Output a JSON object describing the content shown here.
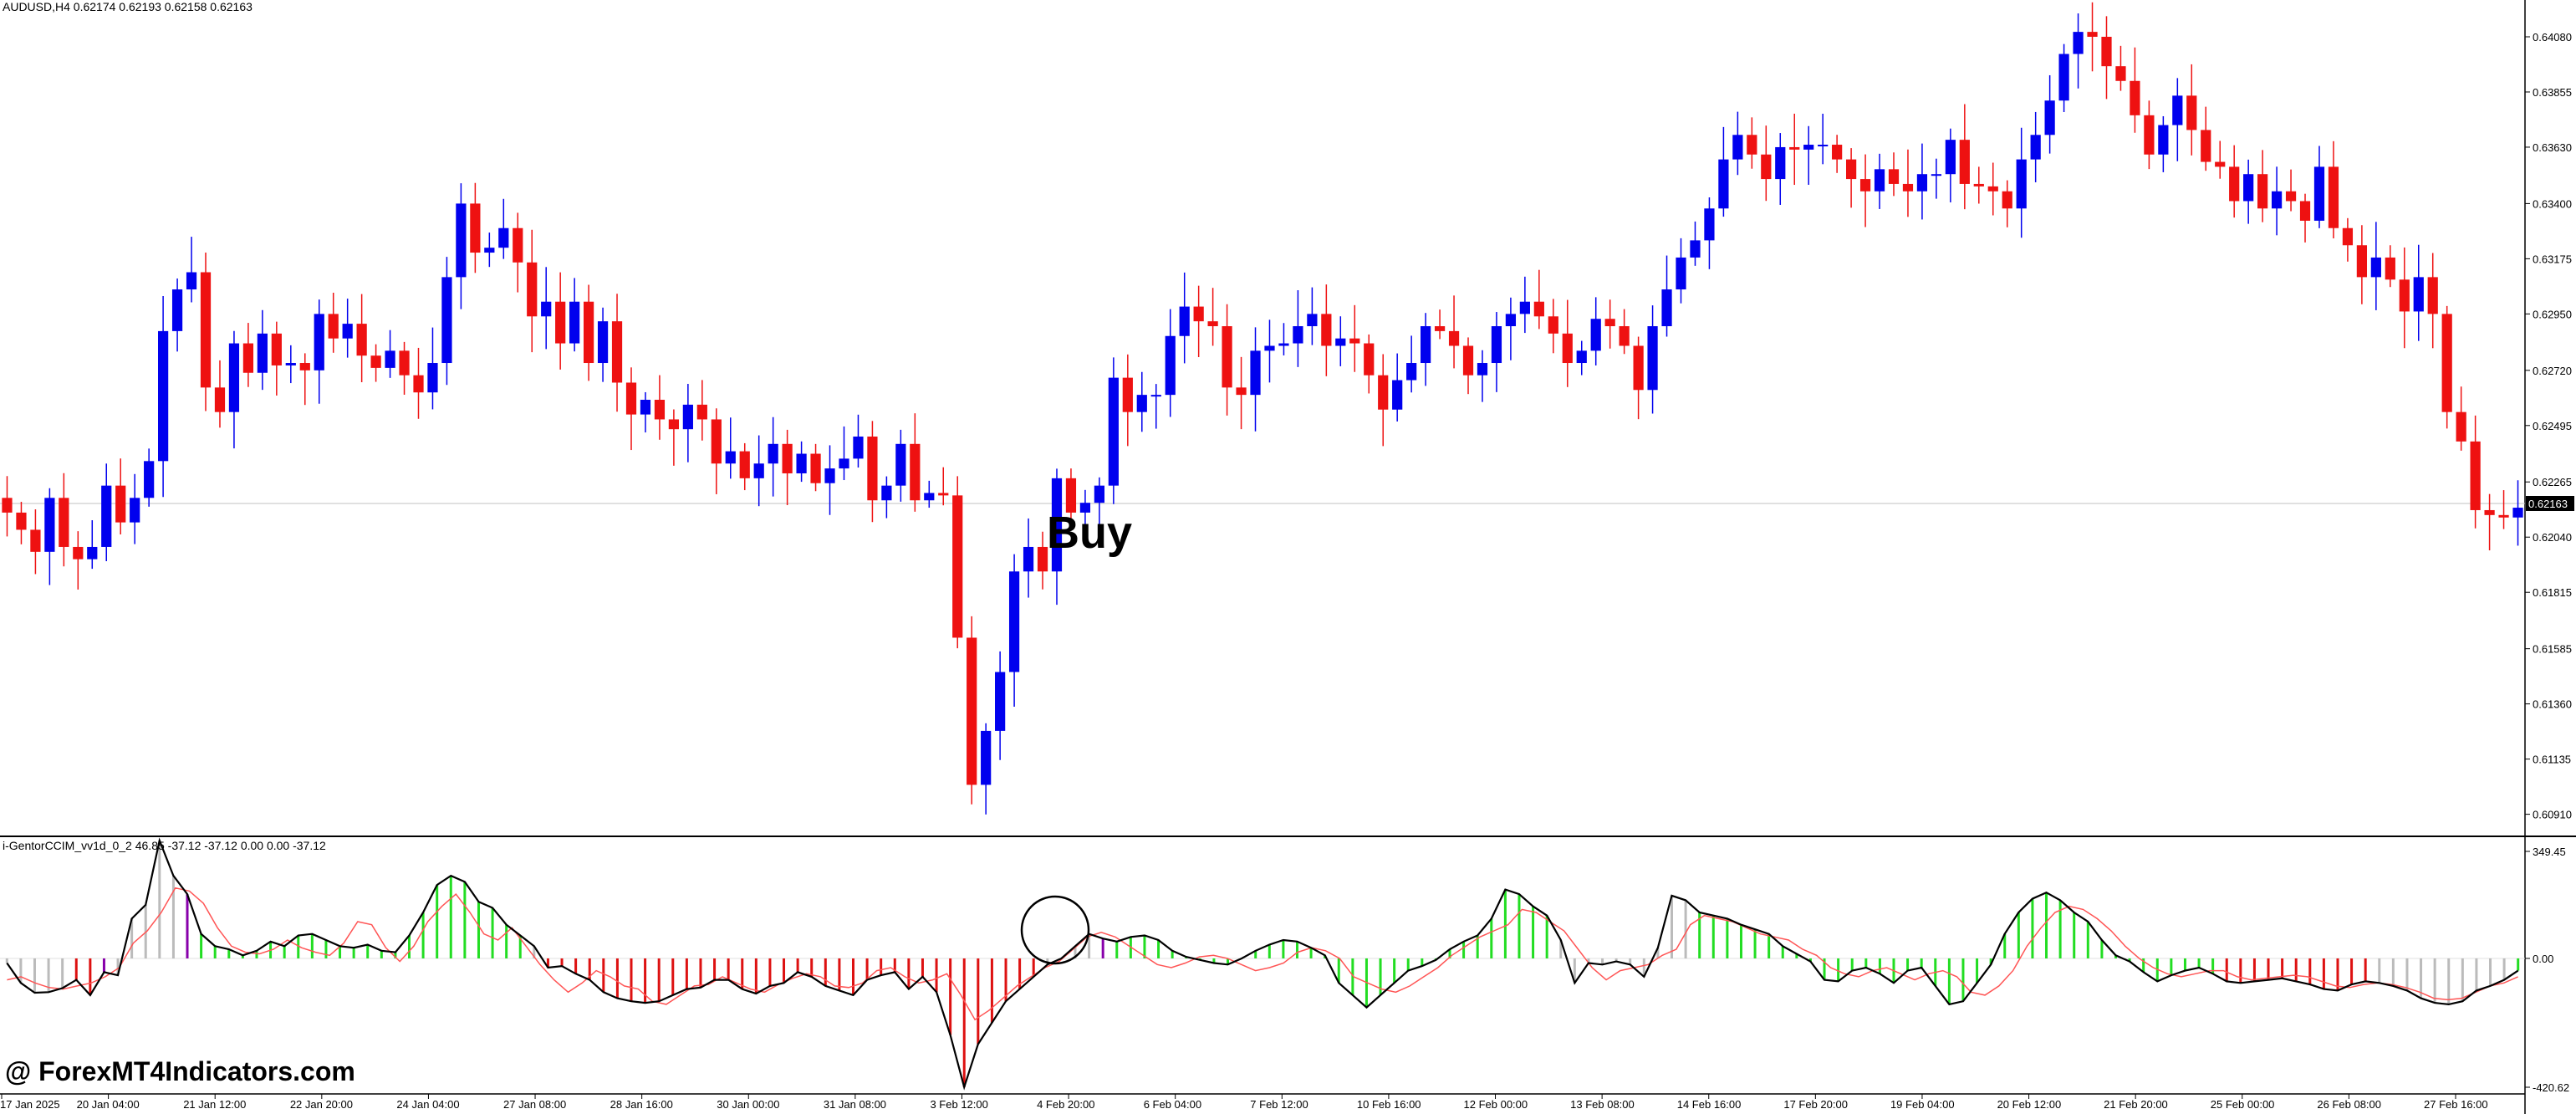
{
  "header": {
    "symbol_info": "AUDUSD,H4  0.62174 0.62193 0.62158 0.62163"
  },
  "indicator": {
    "info": "i-GentorCCIM_vv1d_0_2 46.85 -37.12 -37.12 0.00 0.00 -37.12"
  },
  "watermark": "@ ForexMT4Indicators.com",
  "annotation": "Buy",
  "colors": {
    "bull": "#0000ee",
    "bear": "#ee1111",
    "hist_up": "#22dd22",
    "hist_down": "#dd1111",
    "hist_neutral": "#bbbbbb",
    "signal": "#ff5555",
    "main_line": "#000000",
    "marker": "#8800aa"
  },
  "chart_data": [
    {
      "type": "candlestick",
      "symbol": "AUDUSD",
      "timeframe": "H4",
      "ylim": [
        0.6082,
        0.6423
      ],
      "current_price": "0.62163",
      "y_ticks": [
        "0.64080",
        "0.63855",
        "0.63630",
        "0.63400",
        "0.63175",
        "0.62950",
        "0.62720",
        "0.62495",
        "0.62265",
        "0.62040",
        "0.61815",
        "0.61585",
        "0.61360",
        "0.61135",
        "0.60910"
      ],
      "x_ticks": [
        "17 Jan 2025",
        "20 Jan 04:00",
        "21 Jan 12:00",
        "22 Jan 20:00",
        "24 Jan 04:00",
        "27 Jan 08:00",
        "28 Jan 16:00",
        "30 Jan 00:00",
        "31 Jan 08:00",
        "3 Feb 12:00",
        "4 Feb 20:00",
        "6 Feb 04:00",
        "7 Feb 12:00",
        "10 Feb 16:00",
        "12 Feb 00:00",
        "13 Feb 08:00",
        "14 Feb 16:00",
        "17 Feb 20:00",
        "19 Feb 04:00",
        "20 Feb 12:00",
        "21 Feb 20:00",
        "25 Feb 00:00",
        "26 Feb 08:00",
        "27 Feb 16:00"
      ],
      "closes": [
        0.6214,
        0.6207,
        0.6198,
        0.622,
        0.62,
        0.6195,
        0.62,
        0.6225,
        0.621,
        0.622,
        0.6235,
        0.6288,
        0.6305,
        0.6312,
        0.6265,
        0.6255,
        0.6283,
        0.6271,
        0.6287,
        0.6274,
        0.6275,
        0.6272,
        0.6295,
        0.6285,
        0.6291,
        0.6278,
        0.6273,
        0.628,
        0.627,
        0.6263,
        0.6275,
        0.631,
        0.634,
        0.632,
        0.6322,
        0.633,
        0.6316,
        0.6294,
        0.63,
        0.6283,
        0.63,
        0.6275,
        0.6292,
        0.6267,
        0.6254,
        0.626,
        0.6252,
        0.6248,
        0.6258,
        0.6252,
        0.6234,
        0.6239,
        0.6228,
        0.6234,
        0.6242,
        0.623,
        0.6238,
        0.6226,
        0.6232,
        0.6236,
        0.6245,
        0.6219,
        0.6225,
        0.6242,
        0.6219,
        0.6222,
        0.6221,
        0.6163,
        0.6103,
        0.6125,
        0.6149,
        0.619,
        0.62,
        0.619,
        0.6228,
        0.6214,
        0.6218,
        0.6225,
        0.6269,
        0.6255,
        0.6262,
        0.6262,
        0.6286,
        0.6298,
        0.6292,
        0.629,
        0.6265,
        0.6262,
        0.628,
        0.6282,
        0.6283,
        0.629,
        0.6295,
        0.6282,
        0.6285,
        0.6283,
        0.627,
        0.6256,
        0.6268,
        0.6275,
        0.629,
        0.6288,
        0.6282,
        0.627,
        0.6275,
        0.629,
        0.6295,
        0.63,
        0.6294,
        0.6287,
        0.6275,
        0.628,
        0.6293,
        0.629,
        0.6282,
        0.6264,
        0.629,
        0.6305,
        0.6318,
        0.6325,
        0.6338,
        0.6358,
        0.6368,
        0.636,
        0.635,
        0.6363,
        0.6362,
        0.6364,
        0.6364,
        0.6358,
        0.635,
        0.6345,
        0.6354,
        0.6348,
        0.6345,
        0.6352,
        0.6352,
        0.6366,
        0.6348,
        0.6347,
        0.6345,
        0.6338,
        0.6358,
        0.6368,
        0.6382,
        0.6401,
        0.641,
        0.6408,
        0.6396,
        0.639,
        0.6376,
        0.636,
        0.6372,
        0.6384,
        0.637,
        0.6357,
        0.6355,
        0.6341,
        0.6352,
        0.6338,
        0.6345,
        0.6341,
        0.6333,
        0.6355,
        0.633,
        0.6323,
        0.631,
        0.6318,
        0.6309,
        0.6296,
        0.631,
        0.6295,
        0.6255,
        0.6243,
        0.6215,
        0.6213,
        0.6212,
        0.6216
      ],
      "buy_signal_label": "Buy"
    },
    {
      "type": "oscillator",
      "name": "i-GentorCCIM_vv1d_0_2",
      "values": [
        46.85,
        -37.12,
        -37.12,
        0.0,
        0.0,
        -37.12
      ],
      "ylim": [
        -420.62,
        349.45
      ],
      "y_ticks": [
        "349.45",
        "0.00",
        "-420.62"
      ],
      "series": [
        {
          "type": "histogram+line",
          "values": [
            -15,
            -80,
            -112,
            -110,
            -97,
            -70,
            -120,
            -45,
            -55,
            130,
            175,
            385,
            270,
            210,
            80,
            40,
            30,
            10,
            25,
            55,
            40,
            75,
            80,
            60,
            40,
            35,
            45,
            25,
            20,
            75,
            150,
            240,
            270,
            250,
            185,
            165,
            110,
            75,
            40,
            -30,
            -25,
            -50,
            -70,
            -110,
            -130,
            -140,
            -145,
            -140,
            -120,
            -100,
            -95,
            -70,
            -70,
            -100,
            -115,
            -90,
            -80,
            -45,
            -60,
            -90,
            -105,
            -120,
            -70,
            -55,
            -45,
            -100,
            -60,
            -110,
            -250,
            -420,
            -280,
            -210,
            -140,
            -100,
            -60,
            -20,
            0,
            40,
            80,
            65,
            55,
            70,
            75,
            60,
            25,
            5,
            -5,
            -15,
            -20,
            0,
            25,
            45,
            60,
            55,
            35,
            10,
            -80,
            -120,
            -160,
            -120,
            -80,
            -40,
            -25,
            -5,
            30,
            55,
            75,
            130,
            225,
            210,
            170,
            140,
            60,
            -80,
            -15,
            -20,
            -10,
            -20,
            -60,
            35,
            205,
            190,
            150,
            140,
            130,
            110,
            95,
            80,
            40,
            15,
            -10,
            -70,
            -75,
            -40,
            -30,
            -50,
            -80,
            -40,
            -30,
            -90,
            -150,
            -140,
            -80,
            -20,
            80,
            150,
            195,
            215,
            190,
            150,
            120,
            60,
            10,
            -10,
            -45,
            -75,
            -55,
            -40,
            -30,
            -50,
            -75,
            -80,
            -75,
            -70,
            -65,
            -75,
            -85,
            -100,
            -105,
            -85,
            -75,
            -80,
            -90,
            -105,
            -130,
            -145,
            -150,
            -140,
            -105,
            -90,
            -70,
            -40
          ],
          "histogram_colors": [
            "n",
            "n",
            "n",
            "n",
            "n",
            "d",
            "d",
            "m",
            "n",
            "n",
            "n",
            "n",
            "n",
            "m",
            "u",
            "u",
            "u",
            "u",
            "u",
            "u",
            "u",
            "u",
            "u",
            "u",
            "u",
            "u",
            "u",
            "u",
            "u",
            "u",
            "u",
            "u",
            "u",
            "u",
            "u",
            "u",
            "u",
            "u",
            "n",
            "d",
            "d",
            "d",
            "d",
            "d",
            "d",
            "d",
            "d",
            "d",
            "d",
            "d",
            "d",
            "d",
            "d",
            "d",
            "d",
            "d",
            "d",
            "d",
            "d",
            "d",
            "d",
            "d",
            "d",
            "d",
            "d",
            "d",
            "d",
            "d",
            "d",
            "d",
            "d",
            "d",
            "d",
            "d",
            "d",
            "n",
            "n",
            "n",
            "n",
            "m",
            "u",
            "u",
            "u",
            "u",
            "u",
            "u",
            "u",
            "u",
            "u",
            "u",
            "u",
            "u",
            "u",
            "u",
            "u",
            "u",
            "u",
            "u",
            "u",
            "u",
            "u",
            "u",
            "u",
            "u",
            "u",
            "u",
            "u",
            "u",
            "u",
            "u",
            "u",
            "u",
            "n",
            "n",
            "n",
            "n",
            "n",
            "n",
            "n",
            "n",
            "n",
            "n",
            "u",
            "u",
            "u",
            "u",
            "u",
            "u",
            "u",
            "u",
            "u",
            "u",
            "u",
            "u",
            "u",
            "u",
            "u",
            "u",
            "u",
            "u",
            "u",
            "u",
            "u",
            "u",
            "u",
            "u",
            "u",
            "u",
            "u",
            "u",
            "u",
            "u",
            "u",
            "u",
            "u",
            "u",
            "u",
            "u",
            "u",
            "u",
            "d",
            "d",
            "d",
            "d",
            "d",
            "d",
            "d",
            "d",
            "d",
            "d",
            "d",
            "n",
            "n",
            "n",
            "n",
            "n",
            "n",
            "n",
            "n",
            "n",
            "n",
            "u",
            "u",
            "n",
            "n",
            "n",
            "n",
            "n",
            "n",
            "n",
            "d",
            "d",
            "d",
            "d",
            "m",
            "d",
            "d",
            "d",
            "d",
            "d",
            "d",
            "d",
            "d",
            "d",
            "d",
            "d",
            "d",
            "d",
            "d",
            "d",
            "d"
          ]
        },
        {
          "type": "line",
          "values": [
            -70,
            -60,
            -80,
            -95,
            -100,
            -90,
            -80,
            -60,
            -30,
            50,
            90,
            150,
            230,
            220,
            180,
            100,
            40,
            20,
            15,
            30,
            60,
            35,
            20,
            10,
            50,
            120,
            110,
            35,
            -10,
            40,
            120,
            170,
            210,
            150,
            80,
            60,
            100,
            40,
            -20,
            -70,
            -110,
            -80,
            -40,
            -60,
            -90,
            -100,
            -140,
            -150,
            -120,
            -90,
            -85,
            -60,
            -80,
            -100,
            -110,
            -85,
            -65,
            -50,
            -60,
            -90,
            -95,
            -80,
            -40,
            -30,
            -60,
            -80,
            -70,
            -50,
            -120,
            -200,
            -170,
            -130,
            -90,
            -60,
            -30,
            -10,
            30,
            70,
            85,
            70,
            40,
            10,
            -20,
            -30,
            -15,
            5,
            10,
            0,
            -20,
            -40,
            -30,
            -15,
            20,
            35,
            25,
            0,
            -60,
            -80,
            -100,
            -110,
            -90,
            -60,
            -30,
            10,
            40,
            70,
            90,
            110,
            160,
            150,
            120,
            90,
            30,
            -30,
            -70,
            -40,
            -30,
            -20,
            10,
            30,
            110,
            140,
            130,
            120,
            100,
            80,
            70,
            60,
            30,
            10,
            -30,
            -50,
            -60,
            -40,
            -30,
            -50,
            -70,
            -50,
            -40,
            -60,
            -110,
            -120,
            -90,
            -40,
            40,
            100,
            150,
            170,
            160,
            130,
            90,
            40,
            0,
            -30,
            -50,
            -60,
            -50,
            -40,
            -40,
            -60,
            -70,
            -65,
            -60,
            -55,
            -60,
            -75,
            -90,
            -95,
            -85,
            -80,
            -85,
            -95,
            -110,
            -130,
            -135,
            -130,
            -110,
            -90,
            -80,
            -60
          ]
        }
      ]
    }
  ]
}
